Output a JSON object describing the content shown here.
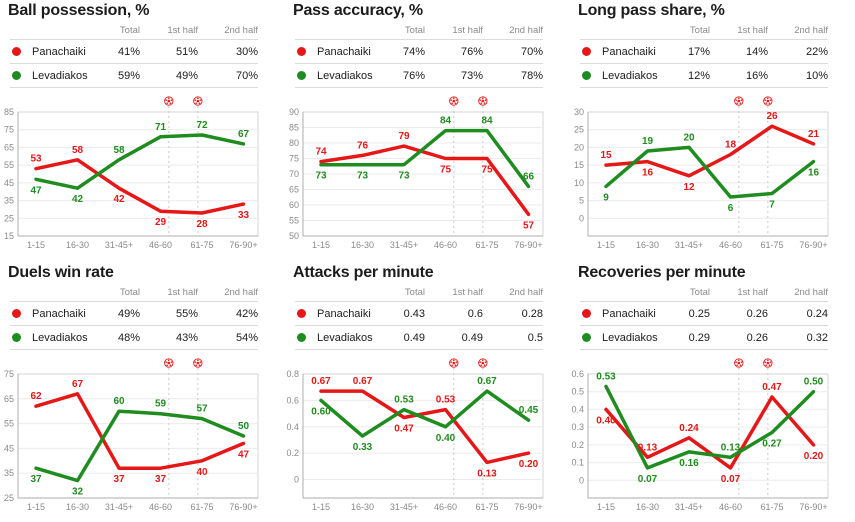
{
  "teams": {
    "home": "Panachaiki",
    "away": "Levadiakos"
  },
  "colors": {
    "home": "#e51717",
    "away": "#1f8c1f",
    "title_text": "#1c1c1c",
    "muted_text": "#8a8a8a",
    "divider": "#dcdcdc",
    "grid": "#ebebeb",
    "axis": "#adadad",
    "plot_border": "#d6d6d6",
    "goal_line": "#c9c9c9",
    "goal_icon": "#e51717",
    "background": "#ffffff"
  },
  "table_headers": [
    "Total",
    "1st half",
    "2nd half"
  ],
  "categories": [
    "1-15",
    "16-30",
    "31-45+",
    "46-60",
    "61-75",
    "76-90+"
  ],
  "goal_markers": {
    "icon": "soccer-ball",
    "positions": [
      3.2,
      3.9
    ]
  },
  "chart_data": [
    {
      "type": "line",
      "title": "Ball possession, %",
      "table": {
        "rows": [
          {
            "team": "Panachaiki",
            "values": [
              "41%",
              "51%",
              "30%"
            ]
          },
          {
            "team": "Levadiakos",
            "values": [
              "59%",
              "49%",
              "70%"
            ]
          }
        ]
      },
      "yticks": [
        85,
        75,
        65,
        55,
        45,
        35,
        25,
        15
      ],
      "ymin": 15,
      "ymax": 85,
      "decimals": 0,
      "series": [
        {
          "name": "Panachaiki",
          "color": "#e51717",
          "values": [
            53,
            58,
            42,
            29,
            28,
            33
          ]
        },
        {
          "name": "Levadiakos",
          "color": "#1f8c1f",
          "values": [
            47,
            42,
            58,
            71,
            72,
            67
          ]
        }
      ]
    },
    {
      "type": "line",
      "title": "Pass accuracy, %",
      "table": {
        "rows": [
          {
            "team": "Panachaiki",
            "values": [
              "74%",
              "76%",
              "70%"
            ]
          },
          {
            "team": "Levadiakos",
            "values": [
              "76%",
              "73%",
              "78%"
            ]
          }
        ]
      },
      "yticks": [
        90,
        85,
        80,
        75,
        70,
        65,
        60,
        55,
        50
      ],
      "ymin": 50,
      "ymax": 90,
      "decimals": 0,
      "series": [
        {
          "name": "Panachaiki",
          "color": "#e51717",
          "values": [
            74,
            76,
            79,
            75,
            75,
            57
          ]
        },
        {
          "name": "Levadiakos",
          "color": "#1f8c1f",
          "values": [
            73,
            73,
            73,
            84,
            84,
            66
          ]
        }
      ]
    },
    {
      "type": "line",
      "title": "Long pass share, %",
      "table": {
        "rows": [
          {
            "team": "Panachaiki",
            "values": [
              "17%",
              "14%",
              "22%"
            ]
          },
          {
            "team": "Levadiakos",
            "values": [
              "12%",
              "16%",
              "10%"
            ]
          }
        ]
      },
      "yticks": [
        30,
        25,
        20,
        15,
        10,
        5,
        0
      ],
      "ymin": -5,
      "ymax": 30,
      "decimals": 0,
      "series": [
        {
          "name": "Panachaiki",
          "color": "#e51717",
          "values": [
            15,
            16,
            12,
            18,
            26,
            21
          ]
        },
        {
          "name": "Levadiakos",
          "color": "#1f8c1f",
          "values": [
            9,
            19,
            20,
            6,
            7,
            16
          ]
        }
      ]
    },
    {
      "type": "line",
      "title": "Duels win rate",
      "table": {
        "rows": [
          {
            "team": "Panachaiki",
            "values": [
              "49%",
              "55%",
              "42%"
            ]
          },
          {
            "team": "Levadiakos",
            "values": [
              "48%",
              "43%",
              "54%"
            ]
          }
        ]
      },
      "yticks": [
        75,
        65,
        55,
        45,
        35,
        25
      ],
      "ymin": 25,
      "ymax": 75,
      "decimals": 0,
      "series": [
        {
          "name": "Panachaiki",
          "color": "#e51717",
          "values": [
            62,
            67,
            37,
            37,
            40,
            47
          ]
        },
        {
          "name": "Levadiakos",
          "color": "#1f8c1f",
          "values": [
            37,
            32,
            60,
            59,
            57,
            50
          ]
        }
      ]
    },
    {
      "type": "line",
      "title": "Attacks per minute",
      "table": {
        "rows": [
          {
            "team": "Panachaiki",
            "values": [
              "0.43",
              "0.6",
              "0.28"
            ]
          },
          {
            "team": "Levadiakos",
            "values": [
              "0.49",
              "0.49",
              "0.5"
            ]
          }
        ]
      },
      "yticks": [
        0.8,
        0.6,
        0.4,
        0.2,
        0
      ],
      "ymin": -0.14,
      "ymax": 0.8,
      "decimals": 2,
      "series": [
        {
          "name": "Panachaiki",
          "color": "#e51717",
          "values": [
            0.67,
            0.67,
            0.47,
            0.53,
            0.13,
            0.2
          ]
        },
        {
          "name": "Levadiakos",
          "color": "#1f8c1f",
          "values": [
            0.6,
            0.33,
            0.53,
            0.4,
            0.67,
            0.45
          ]
        }
      ]
    },
    {
      "type": "line",
      "title": "Recoveries per minute",
      "table": {
        "rows": [
          {
            "team": "Panachaiki",
            "values": [
              "0.25",
              "0.26",
              "0.24"
            ]
          },
          {
            "team": "Levadiakos",
            "values": [
              "0.29",
              "0.26",
              "0.32"
            ]
          }
        ]
      },
      "yticks": [
        0.6,
        0.5,
        0.4,
        0.3,
        0.2,
        0.1,
        0
      ],
      "ymin": -0.1,
      "ymax": 0.6,
      "decimals": 2,
      "series": [
        {
          "name": "Panachaiki",
          "color": "#e51717",
          "values": [
            0.4,
            0.13,
            0.24,
            0.07,
            0.47,
            0.2
          ]
        },
        {
          "name": "Levadiakos",
          "color": "#1f8c1f",
          "values": [
            0.53,
            0.07,
            0.16,
            0.13,
            0.27,
            0.5
          ]
        }
      ]
    }
  ]
}
